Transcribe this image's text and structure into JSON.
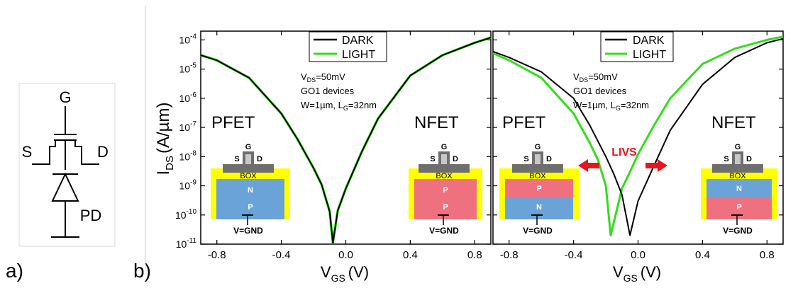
{
  "panel_labels": {
    "a": "a)",
    "b": "b)"
  },
  "schematic": {
    "gate": "G",
    "source": "S",
    "drain": "D",
    "photodiode": "PD"
  },
  "chart_data": [
    {
      "type": "line",
      "title": "",
      "xlabel": "V_GS (V)",
      "ylabel": "I_DS (A/µm)",
      "xlim": [
        -0.9,
        0.9
      ],
      "ylim": [
        1e-11,
        0.0002
      ],
      "yscale": "log",
      "x_ticks": [
        -0.8,
        -0.4,
        0.0,
        0.4,
        0.8
      ],
      "x_tick_labels": [
        "-0.8",
        "-0.4",
        "0.0",
        "0.4",
        "0.8"
      ],
      "y_ticks": [
        1e-11,
        1e-10,
        1e-09,
        1e-08,
        1e-07,
        1e-06,
        1e-05,
        0.0001
      ],
      "y_tick_labels": [
        {
          "base": "10",
          "exp": "-11"
        },
        {
          "base": "10",
          "exp": "-10"
        },
        {
          "base": "10",
          "exp": "-9"
        },
        {
          "base": "10",
          "exp": "-8"
        },
        {
          "base": "10",
          "exp": "-7"
        },
        {
          "base": "10",
          "exp": "-6"
        },
        {
          "base": "10",
          "exp": "-5"
        },
        {
          "base": "10",
          "exp": "-4"
        }
      ],
      "legend": {
        "position": "top-center",
        "entries": [
          "DARK",
          "LIGHT"
        ]
      },
      "series": [
        {
          "name": "DARK",
          "color": "#000000",
          "x": [
            -0.9,
            -0.8,
            -0.6,
            -0.4,
            -0.3,
            -0.2,
            -0.15,
            -0.1,
            -0.08,
            -0.05,
            0.0,
            0.1,
            0.2,
            0.4,
            0.6,
            0.8,
            0.9
          ],
          "y": [
            3e-05,
            2e-05,
            5e-06,
            3e-07,
            4e-08,
            4e-09,
            1.1e-09,
            1.3e-10,
            1.1e-11,
            1.4e-10,
            8e-10,
            1.5e-08,
            2e-07,
            6e-06,
            3e-05,
            8e-05,
            0.00012
          ]
        },
        {
          "name": "LIGHT",
          "color": "#33dd1a",
          "x": [
            -0.9,
            -0.8,
            -0.6,
            -0.4,
            -0.3,
            -0.2,
            -0.15,
            -0.1,
            -0.08,
            -0.05,
            0.0,
            0.1,
            0.2,
            0.4,
            0.6,
            0.8,
            0.9
          ],
          "y": [
            3e-05,
            2e-05,
            5e-06,
            3e-07,
            4e-08,
            4e-09,
            1.1e-09,
            1.3e-10,
            1.1e-11,
            1.4e-10,
            8e-10,
            1.5e-08,
            2e-07,
            6e-06,
            3e-05,
            8e-05,
            0.00012
          ]
        }
      ],
      "annotations": {
        "vds": "V_DS=50mV",
        "device": "GO1 devices",
        "dims": "W=1µm, L_G=32nm",
        "left_label": "PFET",
        "right_label": "NFET"
      },
      "insets": [
        {
          "label": "PFET",
          "layers": [
            "N",
            "P"
          ],
          "gate": "G",
          "source": "S",
          "drain": "D",
          "box": "BOX",
          "ground": "V=GND"
        },
        {
          "label": "NFET",
          "layers": [
            "P",
            "P"
          ],
          "gate": "G",
          "source": "S",
          "drain": "D",
          "box": "BOX",
          "ground": "V=GND"
        }
      ]
    },
    {
      "type": "line",
      "title": "",
      "xlabel": "V_GS (V)",
      "ylabel": "",
      "xlim": [
        -0.9,
        0.9
      ],
      "ylim": [
        1e-11,
        0.0002
      ],
      "yscale": "log",
      "x_ticks": [
        -0.8,
        -0.4,
        0.0,
        0.4,
        0.8
      ],
      "x_tick_labels": [
        "-0.8",
        "-0.4",
        "0.0",
        "0.4",
        "0.8"
      ],
      "legend": {
        "position": "top-center",
        "entries": [
          "DARK",
          "LIGHT"
        ]
      },
      "series": [
        {
          "name": "DARK",
          "color": "#000000",
          "x": [
            -0.9,
            -0.8,
            -0.6,
            -0.4,
            -0.3,
            -0.2,
            -0.15,
            -0.1,
            -0.05,
            0.0,
            0.1,
            0.2,
            0.4,
            0.6,
            0.8,
            0.9
          ],
          "y": [
            4e-05,
            2.5e-05,
            8e-06,
            1e-06,
            1.2e-07,
            1e-08,
            2.5e-09,
            5e-10,
            2e-11,
            3e-10,
            5e-09,
            8e-08,
            3e-06,
            2.5e-05,
            8e-05,
            0.00011
          ]
        },
        {
          "name": "LIGHT",
          "color": "#33dd1a",
          "x": [
            -0.9,
            -0.8,
            -0.6,
            -0.4,
            -0.3,
            -0.25,
            -0.2,
            -0.17,
            -0.1,
            -0.05,
            0.0,
            0.1,
            0.2,
            0.4,
            0.6,
            0.8,
            0.9
          ],
          "y": [
            3.5e-05,
            2e-05,
            5e-06,
            3e-07,
            3e-08,
            8e-09,
            1e-09,
            2e-11,
            8e-10,
            3e-09,
            1.2e-08,
            1.2e-07,
            1e-06,
            1.5e-05,
            5e-05,
            0.0001,
            0.00013
          ]
        }
      ],
      "annotations": {
        "vds": "V_DS=50mV",
        "device": "GO1 devices",
        "dims": "W=1µm, L_G=32nm",
        "left_label": "PFET",
        "right_label": "NFET",
        "arrow_label": "LIVS"
      },
      "insets": [
        {
          "label": "PFET",
          "layers": [
            "P",
            "N"
          ],
          "gate": "G",
          "source": "S",
          "drain": "D",
          "box": "BOX",
          "ground": "V=GND"
        },
        {
          "label": "NFET",
          "layers": [
            "N",
            "P"
          ],
          "gate": "G",
          "source": "S",
          "drain": "D",
          "box": "BOX",
          "ground": "V=GND"
        }
      ]
    }
  ],
  "colors": {
    "dark": "#000000",
    "light": "#33dd1a",
    "arrow": "#e8141e",
    "oxide": "#ffff00",
    "n_layer": "#6aa3d8",
    "p_layer": "#ef7180",
    "gate_dark": "#6e6e6e",
    "gate_light": "#c8c8c8"
  }
}
